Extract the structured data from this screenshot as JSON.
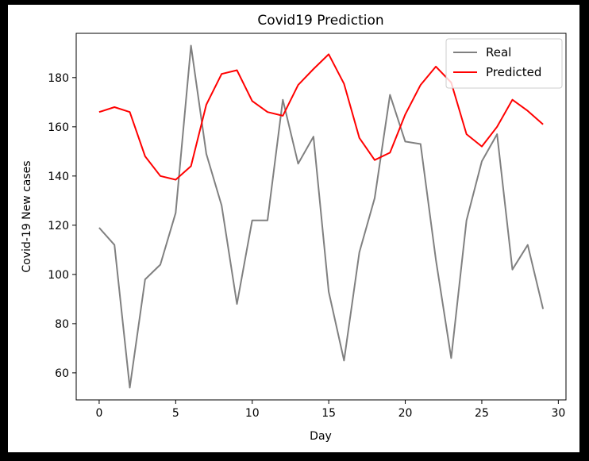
{
  "chart_data": {
    "type": "line",
    "title": "Covid19 Prediction",
    "xlabel": "Day",
    "ylabel": "Covid-19 New cases",
    "xlim": [
      -1.5,
      30.5
    ],
    "ylim": [
      49,
      198
    ],
    "xticks": [
      0,
      5,
      10,
      15,
      20,
      25,
      30
    ],
    "yticks": [
      60,
      80,
      100,
      120,
      140,
      160,
      180
    ],
    "grid": false,
    "legend_position": "top-right",
    "x": [
      0,
      1,
      2,
      3,
      4,
      5,
      6,
      7,
      8,
      9,
      10,
      11,
      12,
      13,
      14,
      15,
      16,
      17,
      18,
      19,
      20,
      21,
      22,
      23,
      24,
      25,
      26,
      27,
      28,
      29
    ],
    "series": [
      {
        "name": "Real",
        "color": "#808080",
        "values": [
          119,
          112,
          54,
          98,
          104,
          125,
          193,
          149,
          128,
          88,
          122,
          122,
          171,
          145,
          156,
          93,
          65,
          109,
          131,
          173,
          154,
          153,
          106,
          66,
          122,
          146,
          157,
          102,
          112,
          86
        ]
      },
      {
        "name": "Predicted",
        "color": "#ff0000",
        "values": [
          166,
          168,
          166,
          148,
          140,
          138.5,
          144,
          169,
          181.5,
          183,
          170.5,
          166,
          164.5,
          177,
          183.5,
          189.5,
          177.5,
          155.5,
          146.5,
          149.5,
          165,
          177,
          184.5,
          178,
          157,
          152,
          160,
          171,
          166.5,
          161
        ]
      }
    ]
  }
}
